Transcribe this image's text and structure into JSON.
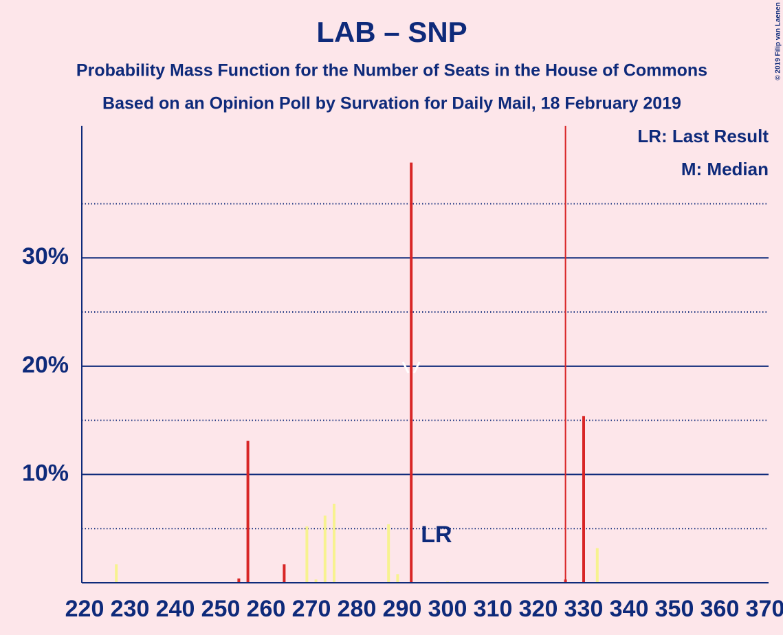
{
  "chart_data": {
    "type": "bar",
    "title": "LAB – SNP",
    "subtitle": "Probability Mass Function for the Number of Seats in the House of Commons",
    "subtitle2": "Based on an Opinion Poll by Survation for Daily Mail, 18 February 2019",
    "copyright": "© 2019 Filip van Laenen",
    "legend": [
      "LR: Last Result",
      "M: Median"
    ],
    "lr_label": "LR",
    "last_result": 326,
    "median": 292,
    "x": [
      227,
      254,
      256,
      264,
      269,
      271,
      273,
      275,
      287,
      289,
      292,
      300,
      326,
      330,
      333
    ],
    "values": [
      1.7,
      0.4,
      13.1,
      1.7,
      5.2,
      0.3,
      6.2,
      7.3,
      5.4,
      0.8,
      38.8,
      0.1,
      0.3,
      15.4,
      3.2
    ],
    "colors": [
      "#f7f28f",
      "#d82626",
      "#d82626",
      "#d82626",
      "#f7f28f",
      "#f7f28f",
      "#f7f28f",
      "#f7f28f",
      "#f7f28f",
      "#f7f28f",
      "#d82626",
      "#f7f28f",
      "#d82626",
      "#d82626",
      "#f7f28f"
    ],
    "xlim": [
      220,
      370
    ],
    "xticks": [
      220,
      230,
      240,
      250,
      260,
      270,
      280,
      290,
      300,
      310,
      320,
      330,
      340,
      350,
      360,
      370
    ],
    "ylim": [
      0,
      42.2
    ],
    "yticks": [
      {
        "value": 10,
        "label": "10%"
      },
      {
        "value": 20,
        "label": "20%"
      },
      {
        "value": 30,
        "label": "30%"
      }
    ],
    "minor_yticks": [
      5,
      15,
      25,
      35
    ],
    "grid": true
  }
}
